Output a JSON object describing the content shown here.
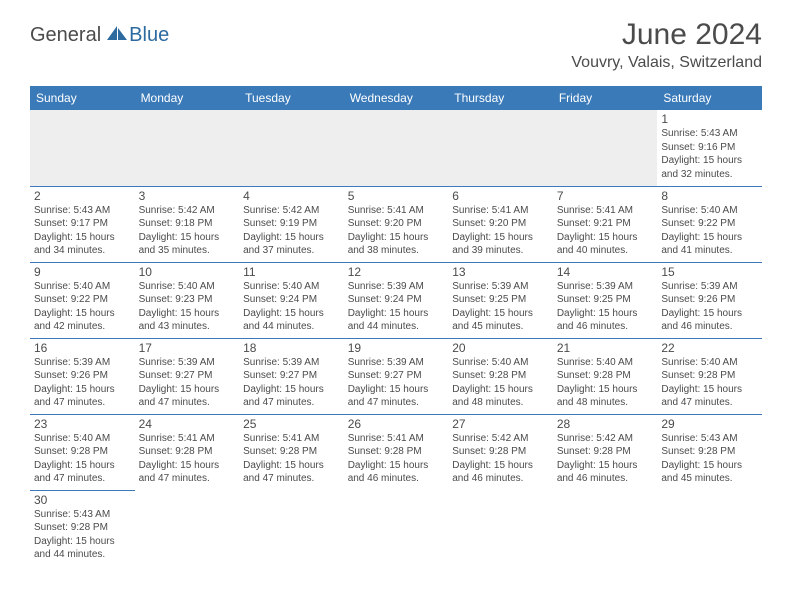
{
  "logo": {
    "general": "General",
    "blue": "Blue"
  },
  "title": "June 2024",
  "subtitle": "Vouvry, Valais, Switzerland",
  "colors": {
    "header_bg": "#3a7ab8",
    "header_text": "#ffffff",
    "border": "#3a7ab8",
    "body_text": "#4b4b4b",
    "empty_week1": "#eeeeee"
  },
  "weekdays": [
    "Sunday",
    "Monday",
    "Tuesday",
    "Wednesday",
    "Thursday",
    "Friday",
    "Saturday"
  ],
  "weeks": [
    [
      null,
      null,
      null,
      null,
      null,
      null,
      {
        "d": "1",
        "sr": "Sunrise: 5:43 AM",
        "ss": "Sunset: 9:16 PM",
        "dl1": "Daylight: 15 hours",
        "dl2": "and 32 minutes."
      }
    ],
    [
      {
        "d": "2",
        "sr": "Sunrise: 5:43 AM",
        "ss": "Sunset: 9:17 PM",
        "dl1": "Daylight: 15 hours",
        "dl2": "and 34 minutes."
      },
      {
        "d": "3",
        "sr": "Sunrise: 5:42 AM",
        "ss": "Sunset: 9:18 PM",
        "dl1": "Daylight: 15 hours",
        "dl2": "and 35 minutes."
      },
      {
        "d": "4",
        "sr": "Sunrise: 5:42 AM",
        "ss": "Sunset: 9:19 PM",
        "dl1": "Daylight: 15 hours",
        "dl2": "and 37 minutes."
      },
      {
        "d": "5",
        "sr": "Sunrise: 5:41 AM",
        "ss": "Sunset: 9:20 PM",
        "dl1": "Daylight: 15 hours",
        "dl2": "and 38 minutes."
      },
      {
        "d": "6",
        "sr": "Sunrise: 5:41 AM",
        "ss": "Sunset: 9:20 PM",
        "dl1": "Daylight: 15 hours",
        "dl2": "and 39 minutes."
      },
      {
        "d": "7",
        "sr": "Sunrise: 5:41 AM",
        "ss": "Sunset: 9:21 PM",
        "dl1": "Daylight: 15 hours",
        "dl2": "and 40 minutes."
      },
      {
        "d": "8",
        "sr": "Sunrise: 5:40 AM",
        "ss": "Sunset: 9:22 PM",
        "dl1": "Daylight: 15 hours",
        "dl2": "and 41 minutes."
      }
    ],
    [
      {
        "d": "9",
        "sr": "Sunrise: 5:40 AM",
        "ss": "Sunset: 9:22 PM",
        "dl1": "Daylight: 15 hours",
        "dl2": "and 42 minutes."
      },
      {
        "d": "10",
        "sr": "Sunrise: 5:40 AM",
        "ss": "Sunset: 9:23 PM",
        "dl1": "Daylight: 15 hours",
        "dl2": "and 43 minutes."
      },
      {
        "d": "11",
        "sr": "Sunrise: 5:40 AM",
        "ss": "Sunset: 9:24 PM",
        "dl1": "Daylight: 15 hours",
        "dl2": "and 44 minutes."
      },
      {
        "d": "12",
        "sr": "Sunrise: 5:39 AM",
        "ss": "Sunset: 9:24 PM",
        "dl1": "Daylight: 15 hours",
        "dl2": "and 44 minutes."
      },
      {
        "d": "13",
        "sr": "Sunrise: 5:39 AM",
        "ss": "Sunset: 9:25 PM",
        "dl1": "Daylight: 15 hours",
        "dl2": "and 45 minutes."
      },
      {
        "d": "14",
        "sr": "Sunrise: 5:39 AM",
        "ss": "Sunset: 9:25 PM",
        "dl1": "Daylight: 15 hours",
        "dl2": "and 46 minutes."
      },
      {
        "d": "15",
        "sr": "Sunrise: 5:39 AM",
        "ss": "Sunset: 9:26 PM",
        "dl1": "Daylight: 15 hours",
        "dl2": "and 46 minutes."
      }
    ],
    [
      {
        "d": "16",
        "sr": "Sunrise: 5:39 AM",
        "ss": "Sunset: 9:26 PM",
        "dl1": "Daylight: 15 hours",
        "dl2": "and 47 minutes."
      },
      {
        "d": "17",
        "sr": "Sunrise: 5:39 AM",
        "ss": "Sunset: 9:27 PM",
        "dl1": "Daylight: 15 hours",
        "dl2": "and 47 minutes."
      },
      {
        "d": "18",
        "sr": "Sunrise: 5:39 AM",
        "ss": "Sunset: 9:27 PM",
        "dl1": "Daylight: 15 hours",
        "dl2": "and 47 minutes."
      },
      {
        "d": "19",
        "sr": "Sunrise: 5:39 AM",
        "ss": "Sunset: 9:27 PM",
        "dl1": "Daylight: 15 hours",
        "dl2": "and 47 minutes."
      },
      {
        "d": "20",
        "sr": "Sunrise: 5:40 AM",
        "ss": "Sunset: 9:28 PM",
        "dl1": "Daylight: 15 hours",
        "dl2": "and 48 minutes."
      },
      {
        "d": "21",
        "sr": "Sunrise: 5:40 AM",
        "ss": "Sunset: 9:28 PM",
        "dl1": "Daylight: 15 hours",
        "dl2": "and 48 minutes."
      },
      {
        "d": "22",
        "sr": "Sunrise: 5:40 AM",
        "ss": "Sunset: 9:28 PM",
        "dl1": "Daylight: 15 hours",
        "dl2": "and 47 minutes."
      }
    ],
    [
      {
        "d": "23",
        "sr": "Sunrise: 5:40 AM",
        "ss": "Sunset: 9:28 PM",
        "dl1": "Daylight: 15 hours",
        "dl2": "and 47 minutes."
      },
      {
        "d": "24",
        "sr": "Sunrise: 5:41 AM",
        "ss": "Sunset: 9:28 PM",
        "dl1": "Daylight: 15 hours",
        "dl2": "and 47 minutes."
      },
      {
        "d": "25",
        "sr": "Sunrise: 5:41 AM",
        "ss": "Sunset: 9:28 PM",
        "dl1": "Daylight: 15 hours",
        "dl2": "and 47 minutes."
      },
      {
        "d": "26",
        "sr": "Sunrise: 5:41 AM",
        "ss": "Sunset: 9:28 PM",
        "dl1": "Daylight: 15 hours",
        "dl2": "and 46 minutes."
      },
      {
        "d": "27",
        "sr": "Sunrise: 5:42 AM",
        "ss": "Sunset: 9:28 PM",
        "dl1": "Daylight: 15 hours",
        "dl2": "and 46 minutes."
      },
      {
        "d": "28",
        "sr": "Sunrise: 5:42 AM",
        "ss": "Sunset: 9:28 PM",
        "dl1": "Daylight: 15 hours",
        "dl2": "and 46 minutes."
      },
      {
        "d": "29",
        "sr": "Sunrise: 5:43 AM",
        "ss": "Sunset: 9:28 PM",
        "dl1": "Daylight: 15 hours",
        "dl2": "and 45 minutes."
      }
    ],
    [
      {
        "d": "30",
        "sr": "Sunrise: 5:43 AM",
        "ss": "Sunset: 9:28 PM",
        "dl1": "Daylight: 15 hours",
        "dl2": "and 44 minutes."
      },
      null,
      null,
      null,
      null,
      null,
      null
    ]
  ]
}
